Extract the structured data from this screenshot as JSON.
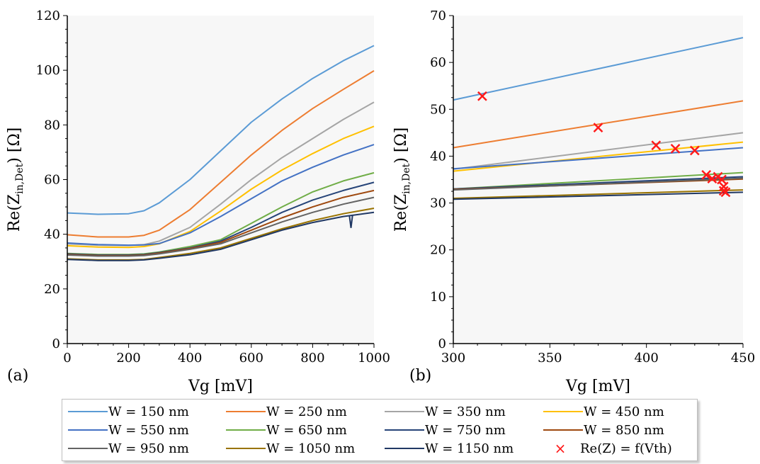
{
  "chart_data": [
    {
      "panel": "(a)",
      "type": "line",
      "xlabel": "Vg [mV]",
      "ylabel_main": "Re(Z",
      "ylabel_sub": "in,Det",
      "ylabel_end": ") [Ω]",
      "xlim": [
        0,
        1000
      ],
      "ylim": [
        0,
        120
      ],
      "xticks": [
        0,
        200,
        400,
        600,
        800,
        1000
      ],
      "yticks": [
        0,
        20,
        40,
        60,
        80,
        100,
        120
      ],
      "grid": false,
      "x": [
        0,
        100,
        200,
        250,
        300,
        400,
        500,
        600,
        700,
        800,
        900,
        1000
      ],
      "series": [
        {
          "name": "W = 150 nm",
          "color": "#5b9bd5",
          "values": [
            47.8,
            47.3,
            47.5,
            48.6,
            51.5,
            60.0,
            70.5,
            81.0,
            89.5,
            97.0,
            103.5,
            109.0
          ]
        },
        {
          "name": "W = 250 nm",
          "color": "#ed7d31",
          "values": [
            39.8,
            39.0,
            39.0,
            39.6,
            41.5,
            49.0,
            59.0,
            69.0,
            78.0,
            86.0,
            93.0,
            99.8
          ]
        },
        {
          "name": "W = 350 nm",
          "color": "#a5a5a5",
          "values": [
            36.5,
            36.0,
            35.9,
            36.2,
            37.5,
            42.5,
            51.0,
            60.0,
            68.0,
            75.0,
            82.0,
            88.3
          ]
        },
        {
          "name": "W = 450 nm",
          "color": "#ffc000",
          "values": [
            35.8,
            35.3,
            35.2,
            35.5,
            36.5,
            41.0,
            48.5,
            56.5,
            63.5,
            69.5,
            75.0,
            79.5
          ]
        },
        {
          "name": "W = 550 nm",
          "color": "#4472c4",
          "values": [
            36.8,
            36.2,
            36.0,
            36.1,
            36.6,
            40.5,
            46.5,
            53.0,
            59.5,
            64.5,
            69.0,
            72.8
          ]
        },
        {
          "name": "W = 650 nm",
          "color": "#70ad47",
          "values": [
            33.0,
            32.6,
            32.6,
            32.8,
            33.5,
            35.5,
            38.0,
            44.0,
            50.0,
            55.5,
            59.5,
            62.5
          ]
        },
        {
          "name": "W = 750 nm",
          "color": "#264478",
          "values": [
            32.8,
            32.4,
            32.4,
            32.6,
            33.3,
            35.0,
            37.5,
            42.5,
            48.0,
            52.5,
            56.0,
            59.0
          ]
        },
        {
          "name": "W = 850 nm",
          "color": "#9e480e",
          "values": [
            32.6,
            32.2,
            32.2,
            32.4,
            33.1,
            34.8,
            37.0,
            41.5,
            46.0,
            50.0,
            53.5,
            56.0
          ]
        },
        {
          "name": "W = 950 nm",
          "color": "#636363",
          "values": [
            32.4,
            32.0,
            32.0,
            32.2,
            32.8,
            34.5,
            36.5,
            40.5,
            44.5,
            48.0,
            51.0,
            53.5
          ]
        },
        {
          "name": "W = 1050 nm",
          "color": "#997300",
          "values": [
            31.0,
            30.6,
            30.6,
            30.8,
            31.5,
            33.0,
            35.0,
            38.5,
            42.0,
            45.0,
            47.5,
            49.5
          ]
        },
        {
          "name": "W = 1150 nm",
          "color": "#203864",
          "values": [
            30.8,
            30.4,
            30.4,
            30.6,
            31.2,
            32.5,
            34.5,
            38.0,
            41.5,
            44.3,
            46.5,
            48.0
          ]
        }
      ]
    },
    {
      "panel": "(b)",
      "type": "line",
      "xlabel": "Vg [mV]",
      "ylabel_main": "Re(Z",
      "ylabel_sub": "in,Det",
      "ylabel_end": ") [Ω]",
      "xlim": [
        300,
        450
      ],
      "ylim": [
        0,
        70
      ],
      "xticks": [
        300,
        350,
        400,
        450
      ],
      "yticks": [
        0,
        10,
        20,
        30,
        40,
        50,
        60,
        70
      ],
      "grid": false,
      "x": [
        300,
        450
      ],
      "series": [
        {
          "name": "W = 150 nm",
          "color": "#5b9bd5",
          "values": [
            52.0,
            65.3
          ]
        },
        {
          "name": "W = 250 nm",
          "color": "#ed7d31",
          "values": [
            41.8,
            51.8
          ]
        },
        {
          "name": "W = 350 nm",
          "color": "#a5a5a5",
          "values": [
            37.2,
            45.0
          ]
        },
        {
          "name": "W = 450 nm",
          "color": "#ffc000",
          "values": [
            36.8,
            43.0
          ]
        },
        {
          "name": "W = 550 nm",
          "color": "#4472c4",
          "values": [
            37.3,
            41.8
          ]
        },
        {
          "name": "W = 650 nm",
          "color": "#70ad47",
          "values": [
            33.0,
            36.5
          ]
        },
        {
          "name": "W = 750 nm",
          "color": "#264478",
          "values": [
            33.0,
            35.6
          ]
        },
        {
          "name": "W = 850 nm",
          "color": "#9e480e",
          "values": [
            32.9,
            35.1
          ]
        },
        {
          "name": "W = 950 nm",
          "color": "#636363",
          "values": [
            32.8,
            35.3
          ]
        },
        {
          "name": "W = 1050 nm",
          "color": "#997300",
          "values": [
            31.0,
            32.8
          ]
        },
        {
          "name": "W = 1150 nm",
          "color": "#203864",
          "values": [
            30.8,
            32.3
          ]
        }
      ],
      "markers": {
        "name": "Re(Z) = f(Vth)",
        "color": "#ff1a1a",
        "points": [
          [
            315,
            52.8
          ],
          [
            375,
            46.1
          ],
          [
            405,
            42.3
          ],
          [
            415,
            41.6
          ],
          [
            425,
            41.2
          ],
          [
            431,
            36.0
          ],
          [
            434,
            35.2
          ],
          [
            437,
            35.6
          ],
          [
            439,
            35.0
          ],
          [
            440,
            33.5
          ],
          [
            440,
            32.6
          ],
          [
            441,
            32.3
          ]
        ]
      }
    }
  ],
  "legend": [
    {
      "label": "W = 150 nm",
      "color": "#5b9bd5"
    },
    {
      "label": "W = 250 nm",
      "color": "#ed7d31"
    },
    {
      "label": "W = 350 nm",
      "color": "#a5a5a5"
    },
    {
      "label": "W = 450 nm",
      "color": "#ffc000"
    },
    {
      "label": "W = 550 nm",
      "color": "#4472c4"
    },
    {
      "label": "W = 650 nm",
      "color": "#70ad47"
    },
    {
      "label": "W = 750 nm",
      "color": "#264478"
    },
    {
      "label": "W = 850 nm",
      "color": "#9e480e"
    },
    {
      "label": "W = 950 nm",
      "color": "#636363"
    },
    {
      "label": "W = 1050 nm",
      "color": "#997300"
    },
    {
      "label": "W = 1150 nm",
      "color": "#203864"
    },
    {
      "label": "Re(Z) = f(Vth)",
      "color": "#ff1a1a",
      "marker": "×"
    }
  ],
  "panel_labels": {
    "a": "(a)",
    "b": "(b)"
  }
}
